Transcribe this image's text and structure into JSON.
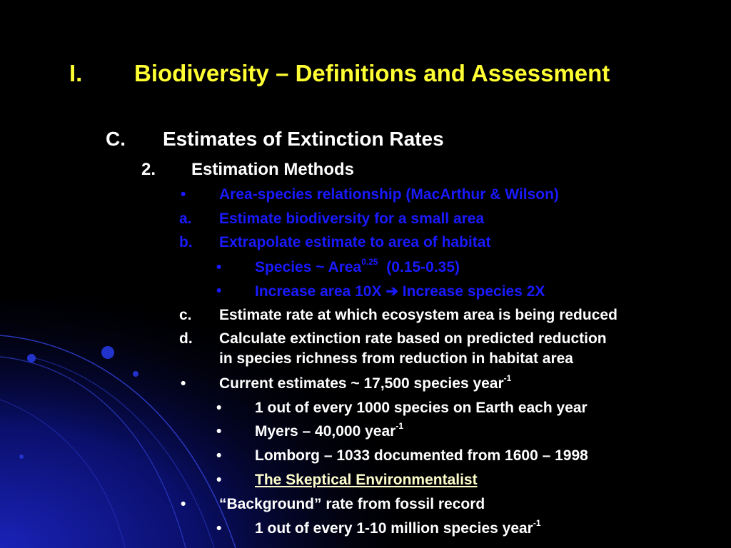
{
  "slide": {
    "title_num": "I.",
    "title": "Biodiversity – Definitions and Assessment",
    "section_num": "C.",
    "section": "Estimates of Extinction Rates",
    "sub_num": "2.",
    "sub": "Estimation Methods",
    "lines": [
      {
        "marker": "•",
        "text": "Area-species relationship (MacArthur & Wilson)"
      },
      {
        "marker": "a.",
        "text": "Estimate biodiversity for a small area"
      },
      {
        "marker": "b.",
        "text": "Extrapolate estimate to area of habitat"
      },
      {
        "marker": "•",
        "text": "Species ~ Area",
        "sup": "0.25",
        "after": "  (0.15-0.35)"
      },
      {
        "marker": "•",
        "text": "Increase area 10X",
        "arrow": "➔",
        "after": "Increase species 2X"
      },
      {
        "marker": "c.",
        "text": "Estimate rate at which ecosystem area is being reduced"
      },
      {
        "marker": "d.",
        "text": "Calculate extinction rate based on predicted reduction",
        "text2": "in species richness from reduction in habitat area"
      },
      {
        "marker": "•",
        "text": "Current estimates ~ 17,500 species year",
        "sup": "-1"
      },
      {
        "marker": "•",
        "text": "1 out of every 1000 species on Earth each year"
      },
      {
        "marker": "•",
        "text": "Myers – 40,000 year",
        "sup": "-1"
      },
      {
        "marker": "•",
        "text": "Lomborg – 1033 documented from 1600 – 1998"
      },
      {
        "marker": "•",
        "text": "The Skeptical Environmentalist"
      },
      {
        "marker": "•",
        "text": "“Background” rate from fossil record"
      },
      {
        "marker": "•",
        "text": "1 out of every 1-10 million species year",
        "sup": "-1"
      }
    ]
  },
  "colors": {
    "background": "#000000",
    "title": "#ffff33",
    "white_text": "#ffffff",
    "blue_text": "#1a1aff",
    "link": "#ffffcc",
    "decoration": "#2233cc"
  }
}
